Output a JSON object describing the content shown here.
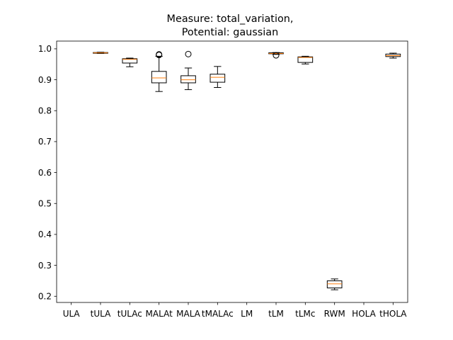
{
  "chart_data": {
    "type": "box",
    "title": [
      "Measure: total_variation,",
      "Potential: gaussian"
    ],
    "xlabel": "",
    "ylabel": "",
    "ylim": [
      0.18,
      1.025
    ],
    "yticks": [
      0.2,
      0.3,
      0.4,
      0.5,
      0.6,
      0.7,
      0.8,
      0.9,
      1.0
    ],
    "ytick_labels": [
      "0.2",
      "0.3",
      "0.4",
      "0.5",
      "0.6",
      "0.7",
      "0.8",
      "0.9",
      "1.0"
    ],
    "grid": false,
    "median_color": "#ff7f0e",
    "categories": [
      "ULA",
      "tULA",
      "tULAc",
      "MALAt",
      "MALA",
      "tMALAc",
      "LM",
      "tLM",
      "tLMc",
      "RWM",
      "HOLA",
      "tHOLA"
    ],
    "boxes": [
      null,
      {
        "whislo": 0.985,
        "q1": 0.986,
        "med": 0.987,
        "q3": 0.988,
        "whishi": 0.989,
        "fliers": []
      },
      {
        "whislo": 0.942,
        "q1": 0.954,
        "med": 0.966,
        "q3": 0.968,
        "whishi": 0.97,
        "fliers": []
      },
      {
        "whislo": 0.862,
        "q1": 0.89,
        "med": 0.906,
        "q3": 0.927,
        "whishi": 0.976,
        "fliers": [
          0.982,
          0.98
        ]
      },
      {
        "whislo": 0.868,
        "q1": 0.89,
        "med": 0.9,
        "q3": 0.913,
        "whishi": 0.938,
        "fliers": [
          0.983
        ]
      },
      {
        "whislo": 0.875,
        "q1": 0.892,
        "med": 0.908,
        "q3": 0.918,
        "whishi": 0.943,
        "fliers": []
      },
      null,
      {
        "whislo": 0.982,
        "q1": 0.984,
        "med": 0.985,
        "q3": 0.987,
        "whishi": 0.988,
        "fliers": [
          0.979
        ]
      },
      {
        "whislo": 0.951,
        "q1": 0.956,
        "med": 0.972,
        "q3": 0.974,
        "whishi": 0.976,
        "fliers": []
      },
      {
        "whislo": 0.221,
        "q1": 0.227,
        "med": 0.24,
        "q3": 0.25,
        "whishi": 0.256,
        "fliers": []
      },
      null,
      {
        "whislo": 0.97,
        "q1": 0.975,
        "med": 0.978,
        "q3": 0.983,
        "whishi": 0.986,
        "fliers": []
      }
    ]
  }
}
